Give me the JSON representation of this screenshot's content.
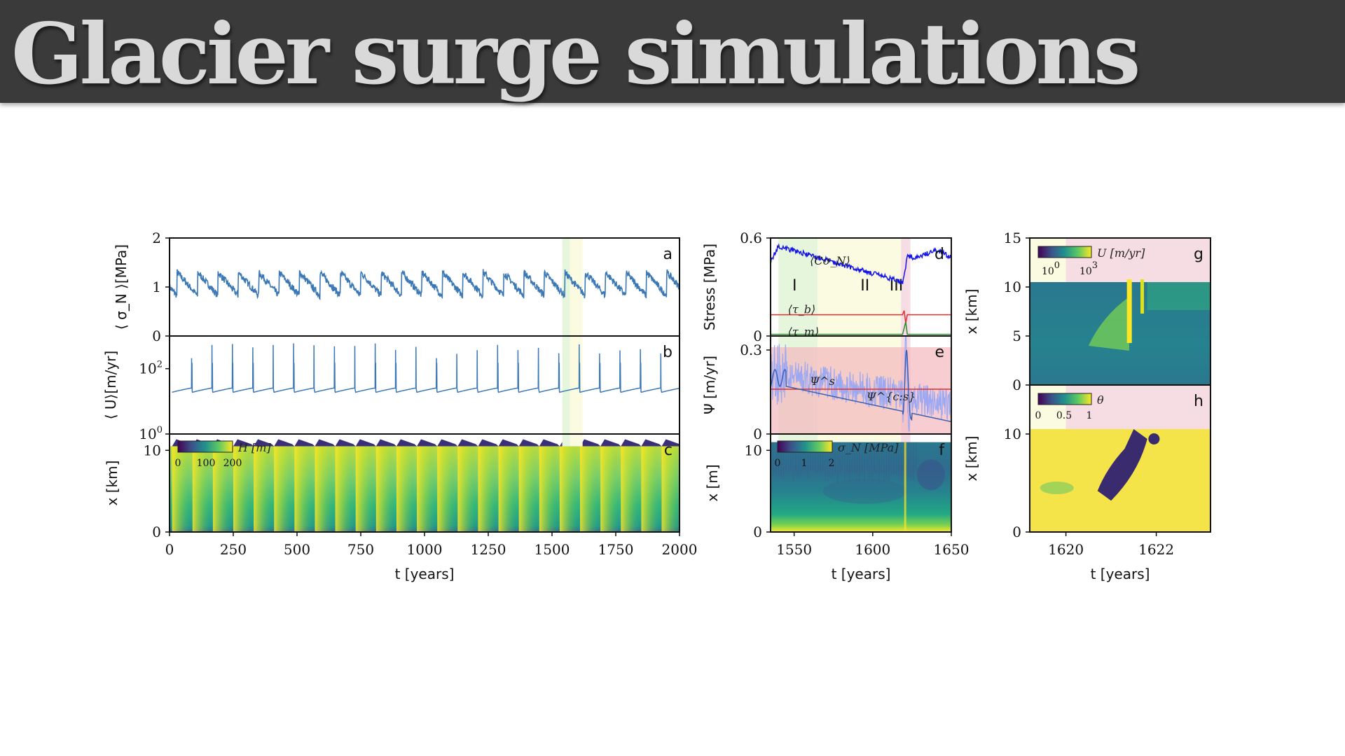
{
  "slide": {
    "title": "Glacier surge simulations"
  },
  "chart_data": [
    {
      "id": "a",
      "type": "line",
      "panel_label": "a",
      "ylabel": "⟨ σ_N ⟩[MPa]",
      "ylim": [
        0,
        2
      ],
      "yticks": [
        "0",
        "1",
        "2"
      ],
      "xlim": [
        0,
        2000
      ],
      "series": [
        {
          "color": "#3b78b5",
          "surge_times": [
            30,
            110,
            190,
            270,
            350,
            430,
            510,
            590,
            670,
            750,
            830,
            910,
            990,
            1070,
            1150,
            1230,
            1310,
            1390,
            1470,
            1550,
            1630,
            1710,
            1790,
            1870,
            1950
          ],
          "min": 0.82,
          "max": 1.3
        }
      ],
      "highlights": [
        {
          "from": 1540,
          "to": 1570,
          "color": "#e6f6dd"
        },
        {
          "from": 1570,
          "to": 1620,
          "color": "#fbfbe2"
        }
      ]
    },
    {
      "id": "b",
      "type": "line",
      "panel_label": "b",
      "scale": "log",
      "ylabel": "⟨ U⟩[m/yr]",
      "ylim": [
        1,
        1000
      ],
      "yticks": [
        {
          "base": "10",
          "exp": "0",
          "value": 1
        },
        {
          "base": "10",
          "exp": "2",
          "value": 100
        }
      ],
      "xlim": [
        0,
        2000
      ],
      "series": [
        {
          "color": "#3b78b5",
          "baseline": 20,
          "peak": 600
        }
      ]
    },
    {
      "id": "c",
      "type": "heatmap",
      "panel_label": "c",
      "ylabel": "x [km]",
      "ylim": [
        0,
        12
      ],
      "yticks": [
        "0",
        "10"
      ],
      "xlim": [
        0,
        2000
      ],
      "xticks": [
        "0",
        "250",
        "500",
        "750",
        "1000",
        "1250",
        "1500",
        "1750",
        "2000"
      ],
      "xlabel": "t [years]",
      "colorbar": {
        "label": "H [m]",
        "ticks": [
          "0",
          "100",
          "200"
        ],
        "colormap": "viridis"
      }
    },
    {
      "id": "d",
      "type": "line",
      "panel_label": "d",
      "ylabel": "Stress [MPa]",
      "ylim": [
        0,
        0.6
      ],
      "yticks": [
        "0",
        "0.6"
      ],
      "xlim": [
        1535,
        1650
      ],
      "series": [
        {
          "label": "⟨Cσ_N⟩",
          "color": "#1414e6",
          "start": 0.55,
          "end": 0.33,
          "after": 0.5
        },
        {
          "label": "⟨τ_b⟩",
          "color": "#e03030",
          "value": 0.13
        },
        {
          "label": "⟨τ_m⟩",
          "color": "#2a8a2a",
          "value": 0.01
        }
      ],
      "phases": [
        {
          "label": "I",
          "from": 1540,
          "to": 1565,
          "color": "#e6f6dd"
        },
        {
          "label": "II",
          "from": 1565,
          "to": 1618,
          "color": "#fbfbe2"
        },
        {
          "label": "III",
          "from": 1618,
          "to": 1624,
          "color": "#f6dde4"
        }
      ]
    },
    {
      "id": "e",
      "type": "line",
      "panel_label": "e",
      "ylabel": "Ψ [m/yr]",
      "ylim": [
        0,
        0.35
      ],
      "yticks": [
        "0",
        "0.3"
      ],
      "xlim": [
        1535,
        1650
      ],
      "series": [
        {
          "label": "Ψ^s",
          "color": "#e03030",
          "value": 0.16
        },
        {
          "label": "Ψ^{c:s}",
          "color": "#3b5fb5"
        }
      ]
    },
    {
      "id": "f",
      "type": "heatmap",
      "panel_label": "f",
      "ylabel": "x [m]",
      "ylim": [
        0,
        12
      ],
      "yticks": [
        "0",
        "10"
      ],
      "xlim": [
        1535,
        1650
      ],
      "xticks": [
        "1550",
        "1600",
        "1650"
      ],
      "xlabel": "t [years]",
      "colorbar": {
        "label": "σ_N  [MPa]",
        "ticks": [
          "0",
          "1",
          "2"
        ],
        "colormap": "viridis"
      }
    },
    {
      "id": "g",
      "type": "heatmap",
      "panel_label": "g",
      "ylabel": "x [km]",
      "ylim": [
        0,
        15
      ],
      "yticks": [
        "0",
        "5",
        "10",
        "15"
      ],
      "xlim": [
        1619.2,
        1623.2
      ],
      "colorbar": {
        "label": "U  [m/yr]",
        "ticks": [
          {
            "base": "10",
            "exp": "0"
          },
          {
            "base": "10",
            "exp": "3"
          }
        ],
        "colormap": "viridis"
      }
    },
    {
      "id": "h",
      "type": "heatmap",
      "panel_label": "h",
      "ylabel": "x [km]",
      "ylim": [
        0,
        15
      ],
      "yticks": [
        "0",
        "10"
      ],
      "xlim": [
        1619.2,
        1623.2
      ],
      "xticks": [
        "1620",
        "1622"
      ],
      "xlabel": "t [years]",
      "colorbar": {
        "label": "θ",
        "ticks": [
          "0",
          "0.5",
          "1"
        ],
        "colormap": "viridis"
      }
    }
  ]
}
